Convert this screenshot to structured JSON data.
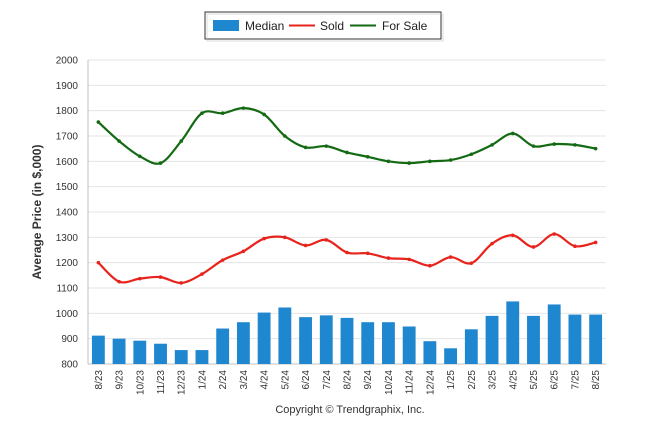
{
  "chart_data": {
    "type": "bar",
    "ylabel": "Average Price (in $,000)",
    "ylim": [
      800,
      2000
    ],
    "yticks": [
      "800",
      "900",
      "1000",
      "1100",
      "1200",
      "1300",
      "1400",
      "1500",
      "1600",
      "1700",
      "1800",
      "1900",
      "2000"
    ],
    "grid": true,
    "legend_position": "top-center",
    "categories": [
      "8/23",
      "9/23",
      "10/23",
      "11/23",
      "12/23",
      "1/24",
      "2/24",
      "3/24",
      "4/24",
      "5/24",
      "6/24",
      "7/24",
      "8/24",
      "9/24",
      "10/24",
      "11/24",
      "12/24",
      "1/25",
      "2/25",
      "3/25",
      "4/25",
      "5/25",
      "6/25",
      "7/25",
      "8/25"
    ],
    "series": [
      {
        "name": "Median",
        "kind": "bar",
        "color": "#1f86d0",
        "values": [
          912,
          900,
          892,
          880,
          855,
          855,
          940,
          965,
          1003,
          1023,
          985,
          992,
          982,
          965,
          965,
          948,
          890,
          862,
          937,
          990,
          1047,
          990,
          1035,
          995,
          995
        ]
      },
      {
        "name": "Sold",
        "kind": "line",
        "color": "#e8231b",
        "values": [
          1200,
          1125,
          1137,
          1143,
          1120,
          1155,
          1210,
          1245,
          1295,
          1300,
          1268,
          1290,
          1240,
          1237,
          1218,
          1213,
          1188,
          1222,
          1198,
          1275,
          1308,
          1262,
          1313,
          1265,
          1280
        ]
      },
      {
        "name": "For Sale",
        "kind": "line",
        "color": "#136a13",
        "values": [
          1755,
          1680,
          1620,
          1593,
          1680,
          1790,
          1790,
          1810,
          1785,
          1700,
          1655,
          1660,
          1635,
          1618,
          1600,
          1593,
          1600,
          1605,
          1628,
          1665,
          1710,
          1660,
          1668,
          1665,
          1650
        ]
      }
    ]
  },
  "footer": {
    "copyright": "Copyright © Trendgraphix, Inc."
  }
}
